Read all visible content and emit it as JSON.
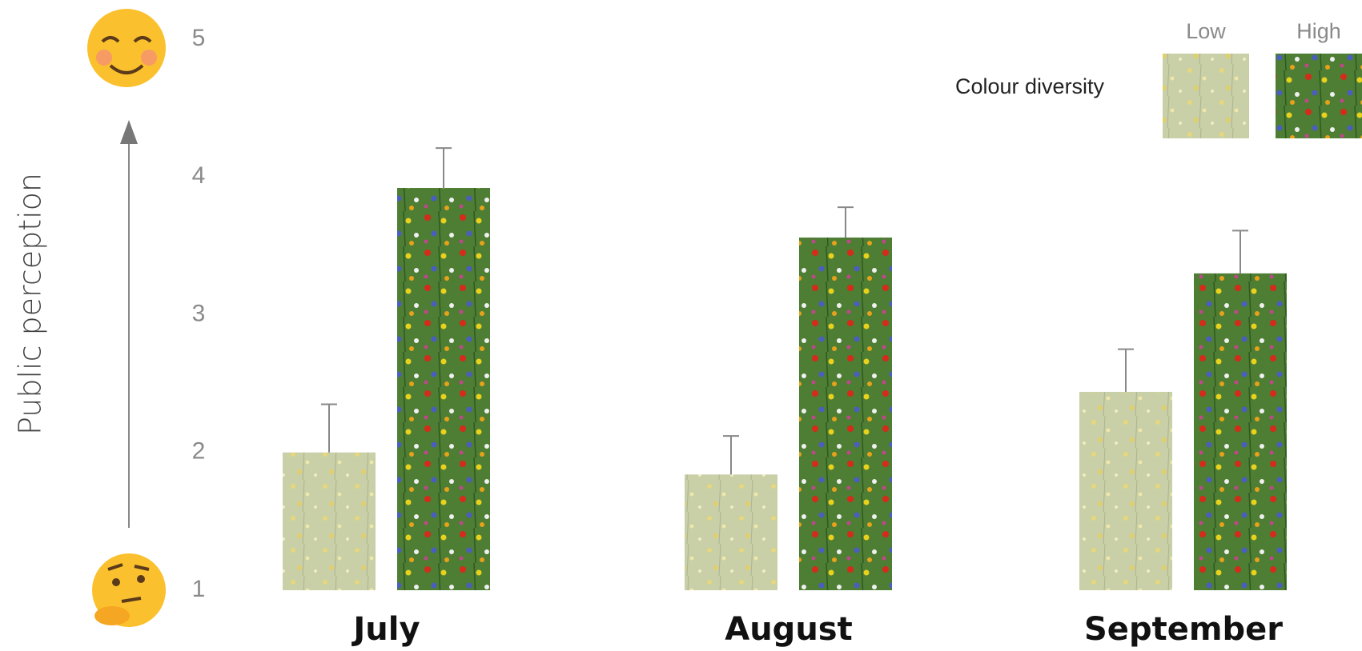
{
  "chart_data": {
    "type": "bar",
    "y_label": "Public perception",
    "legend_title": "Colour diversity",
    "categories": [
      "July",
      "August",
      "September"
    ],
    "series": [
      {
        "name": "Low",
        "color": "#c9cfa6",
        "values": [
          2.0,
          1.84,
          2.44
        ],
        "errors": [
          0.35,
          0.28,
          0.31
        ]
      },
      {
        "name": "High",
        "color": "#4e7d34",
        "values": [
          3.92,
          3.56,
          3.3
        ],
        "errors": [
          0.29,
          0.22,
          0.31
        ]
      }
    ],
    "ylim": [
      1,
      5
    ],
    "yticks": [
      1,
      2,
      3,
      4,
      5
    ],
    "grid": false
  }
}
